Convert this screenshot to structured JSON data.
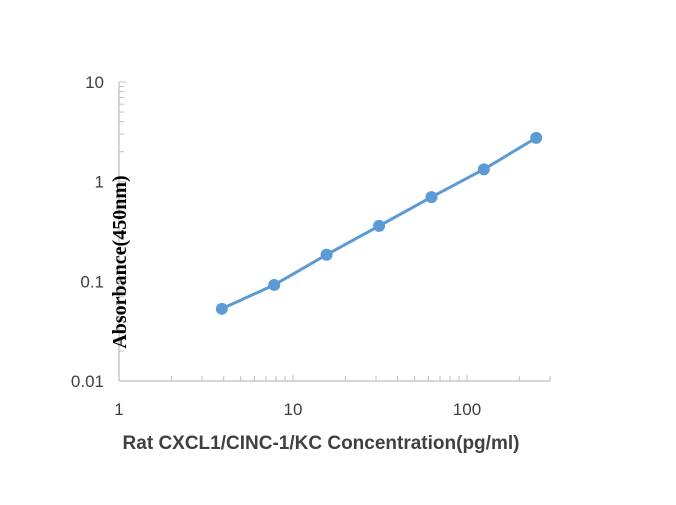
{
  "chart_data": {
    "type": "line",
    "title": "",
    "xlabel": "Rat CXCL1/CINC-1/KC Concentration(pg/ml)",
    "ylabel": "Absorbance(450nm)",
    "x_scale": "log",
    "y_scale": "log",
    "xlim": [
      1,
      300
    ],
    "ylim": [
      0.01,
      10
    ],
    "x_ticks": [
      "1",
      "10",
      "100"
    ],
    "y_ticks": [
      "0.01",
      "0.1",
      "1",
      "10"
    ],
    "grid": false,
    "legend": "none",
    "series": [
      {
        "color": "#5b9bd5",
        "points": [
          {
            "x": 3.9,
            "y": 0.053
          },
          {
            "x": 7.8,
            "y": 0.092
          },
          {
            "x": 15.6,
            "y": 0.185
          },
          {
            "x": 31.25,
            "y": 0.36
          },
          {
            "x": 62.5,
            "y": 0.7
          },
          {
            "x": 125,
            "y": 1.33
          },
          {
            "x": 250,
            "y": 2.75
          }
        ]
      }
    ],
    "colors": {
      "axis": "#bfbfbf",
      "tick_text": "#404040",
      "ylabel_text": "#000000"
    }
  }
}
